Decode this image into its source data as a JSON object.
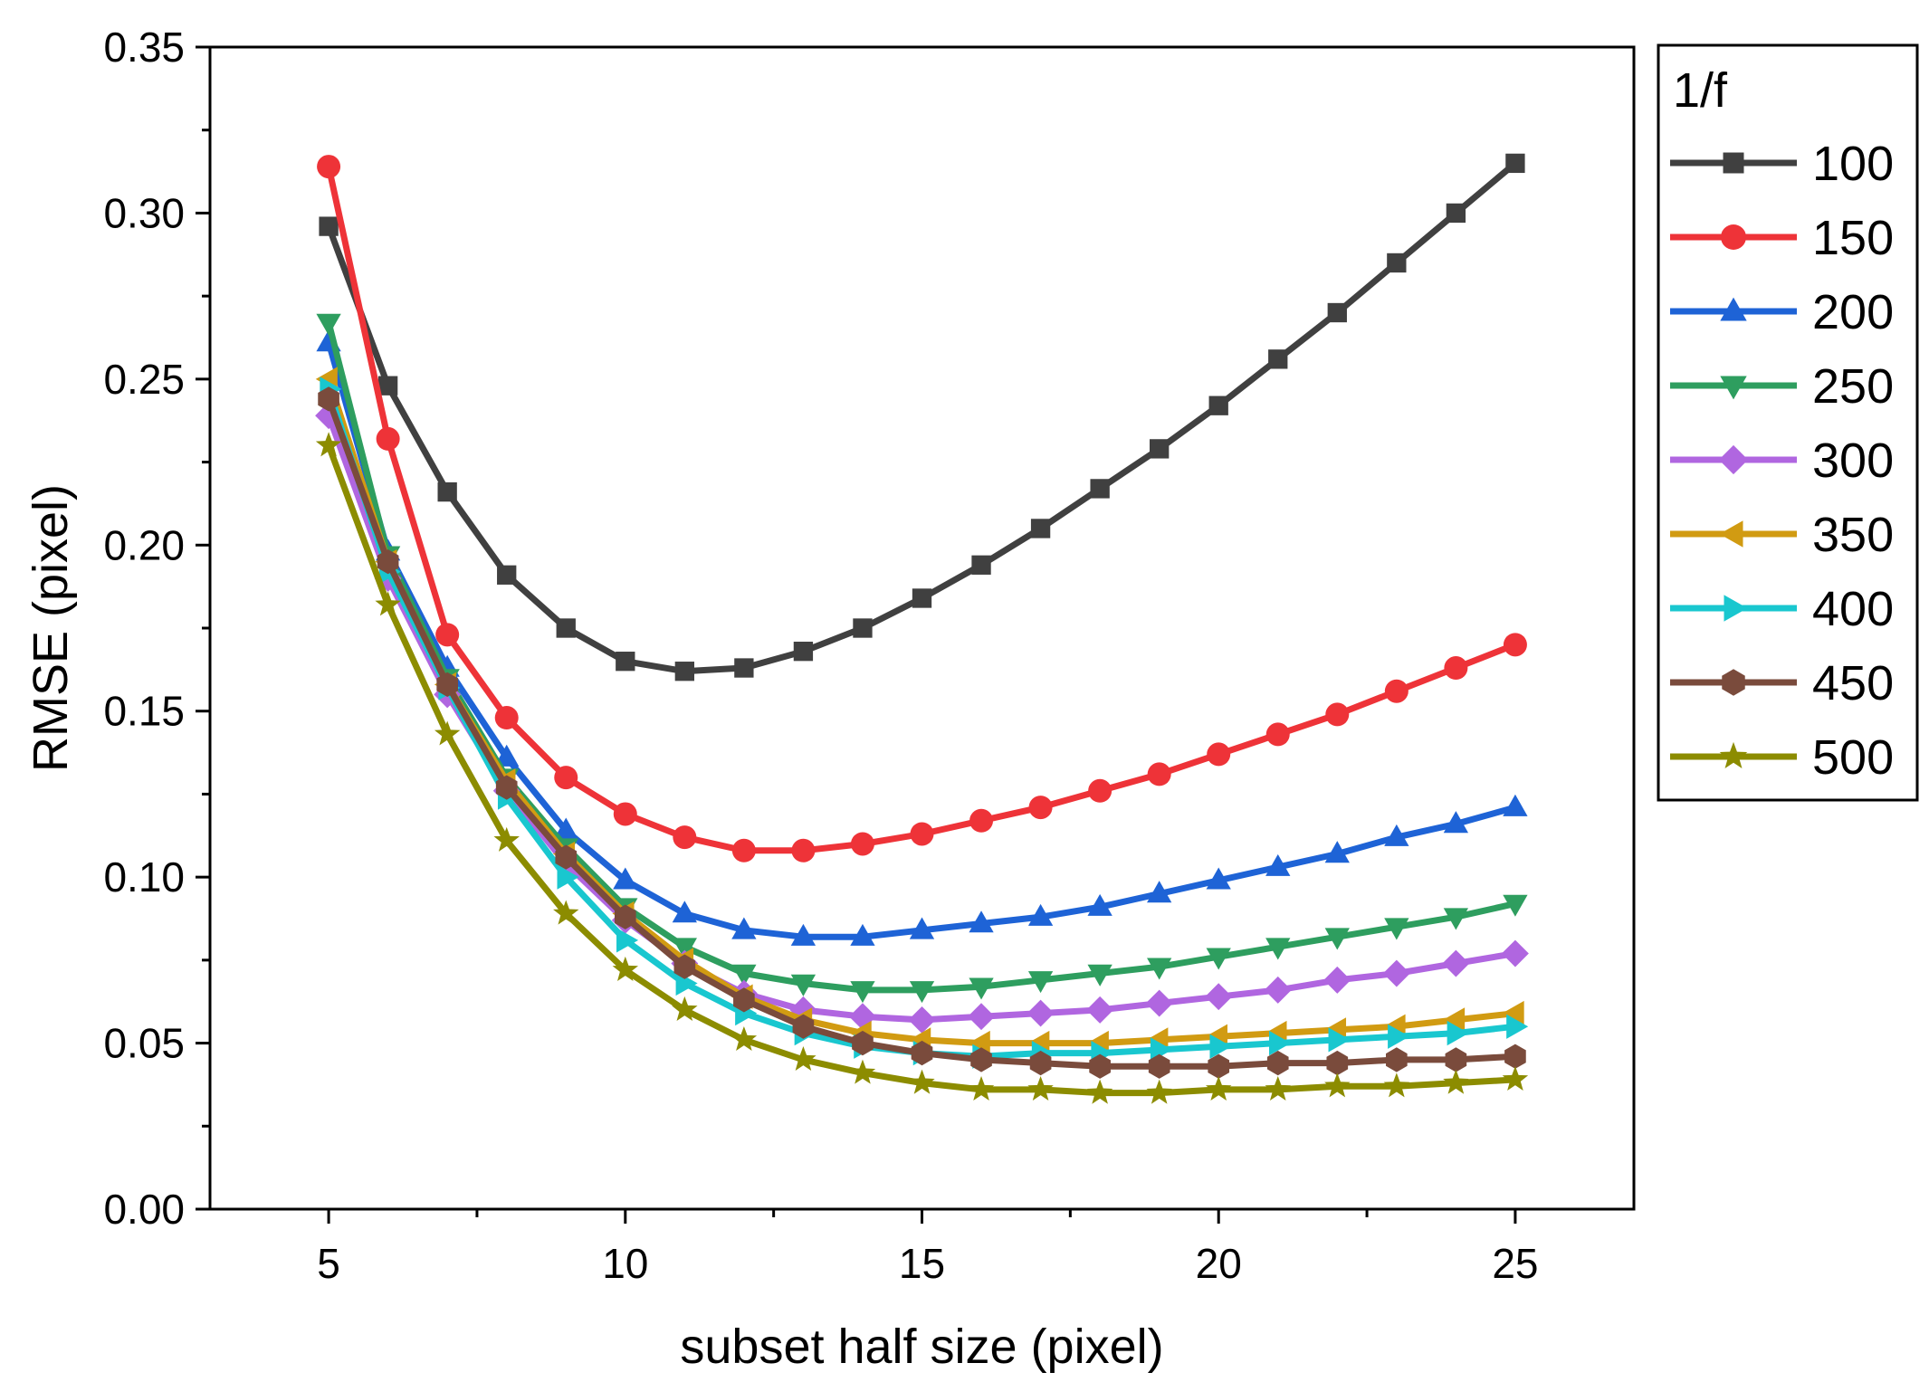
{
  "chart_data": {
    "type": "line",
    "xlabel": "subset half size (pixel)",
    "ylabel": "RMSE (pixel)",
    "xlim": [
      3,
      27
    ],
    "ylim": [
      0,
      0.35
    ],
    "x_ticks": [
      "5",
      "10",
      "15",
      "20",
      "25"
    ],
    "y_ticks": [
      "0.00",
      "0.05",
      "0.10",
      "0.15",
      "0.20",
      "0.25",
      "0.30",
      "0.35"
    ],
    "legend_title": "1/f",
    "legend_position": "right",
    "x": [
      5,
      6,
      7,
      8,
      9,
      10,
      11,
      12,
      13,
      14,
      15,
      16,
      17,
      18,
      19,
      20,
      21,
      22,
      23,
      24,
      25
    ],
    "series": [
      {
        "name": "100",
        "color": "#404040",
        "marker": "square",
        "values": [
          0.296,
          0.248,
          0.216,
          0.191,
          0.175,
          0.165,
          0.162,
          0.163,
          0.168,
          0.175,
          0.184,
          0.194,
          0.205,
          0.217,
          0.229,
          0.242,
          0.256,
          0.27,
          0.285,
          0.3,
          0.315
        ]
      },
      {
        "name": "150",
        "color": "#ee3338",
        "marker": "circle",
        "values": [
          0.314,
          0.232,
          0.173,
          0.148,
          0.13,
          0.119,
          0.112,
          0.108,
          0.108,
          0.11,
          0.113,
          0.117,
          0.121,
          0.126,
          0.131,
          0.137,
          0.143,
          0.149,
          0.156,
          0.163,
          0.17
        ]
      },
      {
        "name": "200",
        "color": "#1e63d6",
        "marker": "triangle-up",
        "values": [
          0.261,
          0.198,
          0.163,
          0.136,
          0.114,
          0.099,
          0.089,
          0.084,
          0.082,
          0.082,
          0.084,
          0.086,
          0.088,
          0.091,
          0.095,
          0.099,
          0.103,
          0.107,
          0.112,
          0.116,
          0.121
        ]
      },
      {
        "name": "250",
        "color": "#2e9e5f",
        "marker": "triangle-down",
        "values": [
          0.267,
          0.197,
          0.16,
          0.13,
          0.109,
          0.091,
          0.079,
          0.071,
          0.068,
          0.066,
          0.066,
          0.067,
          0.069,
          0.071,
          0.073,
          0.076,
          0.079,
          0.082,
          0.085,
          0.088,
          0.092
        ]
      },
      {
        "name": "300",
        "color": "#b066e0",
        "marker": "diamond",
        "values": [
          0.239,
          0.19,
          0.155,
          0.126,
          0.104,
          0.087,
          0.074,
          0.065,
          0.06,
          0.058,
          0.057,
          0.058,
          0.059,
          0.06,
          0.062,
          0.064,
          0.066,
          0.069,
          0.071,
          0.074,
          0.077
        ]
      },
      {
        "name": "350",
        "color": "#d19b12",
        "marker": "triangle-left",
        "values": [
          0.25,
          0.195,
          0.158,
          0.129,
          0.107,
          0.089,
          0.075,
          0.064,
          0.057,
          0.053,
          0.051,
          0.05,
          0.05,
          0.05,
          0.051,
          0.052,
          0.053,
          0.054,
          0.055,
          0.057,
          0.059
        ]
      },
      {
        "name": "400",
        "color": "#19c7cf",
        "marker": "triangle-right",
        "values": [
          0.247,
          0.192,
          0.157,
          0.124,
          0.1,
          0.081,
          0.068,
          0.059,
          0.053,
          0.049,
          0.047,
          0.046,
          0.047,
          0.047,
          0.048,
          0.049,
          0.05,
          0.051,
          0.052,
          0.053,
          0.055
        ]
      },
      {
        "name": "450",
        "color": "#7a4b3c",
        "marker": "hexagon",
        "values": [
          0.244,
          0.195,
          0.158,
          0.127,
          0.106,
          0.088,
          0.073,
          0.063,
          0.055,
          0.05,
          0.047,
          0.045,
          0.044,
          0.043,
          0.043,
          0.043,
          0.044,
          0.044,
          0.045,
          0.045,
          0.046
        ]
      },
      {
        "name": "500",
        "color": "#8c8c00",
        "marker": "star",
        "values": [
          0.23,
          0.182,
          0.143,
          0.111,
          0.089,
          0.072,
          0.06,
          0.051,
          0.045,
          0.041,
          0.038,
          0.036,
          0.036,
          0.035,
          0.035,
          0.036,
          0.036,
          0.037,
          0.037,
          0.038,
          0.039
        ]
      }
    ]
  }
}
